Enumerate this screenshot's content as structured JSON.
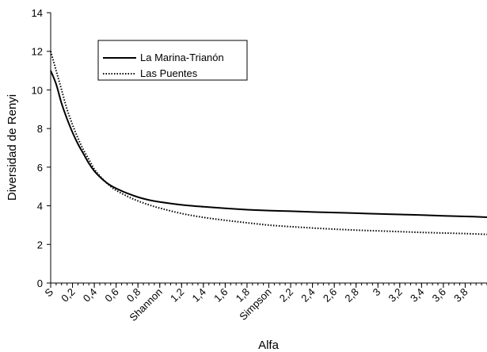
{
  "chart_data": {
    "type": "line",
    "title": "",
    "xlabel": "Alfa",
    "ylabel": "Diversidad de Renyi",
    "ylim": [
      0,
      14
    ],
    "yticks": [
      "0",
      "2",
      "4",
      "6",
      "8",
      "10",
      "12",
      "14"
    ],
    "xlim": [
      0,
      4
    ],
    "xtick_labels": [
      "S",
      "0,2",
      "0,4",
      "0,6",
      "0,8",
      "Shannon",
      "1,2",
      "1,4",
      "1,6",
      "1,8",
      "Simpson",
      "2,2",
      "2,4",
      "2,6",
      "2,8",
      "3",
      "3,2",
      "3,4",
      "3,6",
      "3,8"
    ],
    "grid": false,
    "legend_position": "top-left",
    "x": [
      0,
      0.05,
      0.1,
      0.15,
      0.2,
      0.25,
      0.3,
      0.35,
      0.4,
      0.45,
      0.5,
      0.55,
      0.6,
      0.7,
      0.8,
      0.9,
      1.0,
      1.2,
      1.4,
      1.6,
      1.8,
      2.0,
      2.2,
      2.4,
      2.6,
      2.8,
      3.0,
      3.2,
      3.4,
      3.6,
      3.8,
      4.0
    ],
    "series": [
      {
        "name": "La Marina-Trianón",
        "style": "solid",
        "color": "#000000",
        "values": [
          11.0,
          10.3,
          9.3,
          8.5,
          7.8,
          7.2,
          6.7,
          6.2,
          5.8,
          5.5,
          5.25,
          5.05,
          4.9,
          4.65,
          4.45,
          4.3,
          4.2,
          4.05,
          3.95,
          3.87,
          3.8,
          3.75,
          3.72,
          3.68,
          3.65,
          3.62,
          3.58,
          3.55,
          3.52,
          3.48,
          3.45,
          3.41
        ]
      },
      {
        "name": "Las Puentes",
        "style": "dotted",
        "color": "#000000",
        "values": [
          12.0,
          11.0,
          10.0,
          9.0,
          8.2,
          7.5,
          6.9,
          6.4,
          5.9,
          5.55,
          5.25,
          5.0,
          4.8,
          4.5,
          4.25,
          4.05,
          3.88,
          3.6,
          3.4,
          3.25,
          3.12,
          3.0,
          2.92,
          2.85,
          2.79,
          2.74,
          2.7,
          2.66,
          2.62,
          2.59,
          2.56,
          2.52
        ]
      }
    ]
  }
}
